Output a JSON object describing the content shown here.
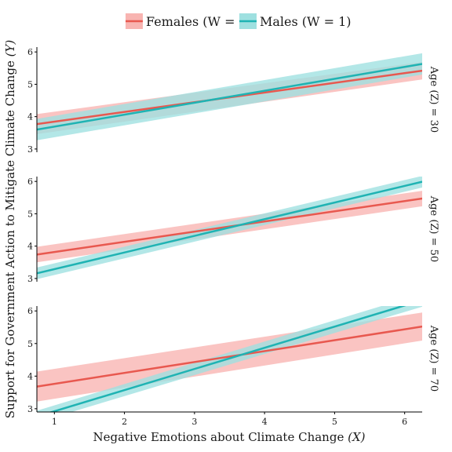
{
  "chart_data": {
    "type": "line",
    "title": "",
    "xlabel": "Negative Emotions about Climate Change",
    "xlabel_symbol": "(X)",
    "ylabel": "Support for Government Action to Mitigate Climate Change",
    "ylabel_symbol": "(Y)",
    "xlim": [
      0.75,
      6.25
    ],
    "ylim": [
      2.9,
      6.15
    ],
    "x_ticks": [
      "1",
      "2",
      "3",
      "4",
      "5",
      "6"
    ],
    "y_ticks": [
      "3",
      "4",
      "5",
      "6"
    ],
    "legend": {
      "position": "top",
      "entries": [
        {
          "name": "Females",
          "label": "Females (W = 0)",
          "line_color": "#E8584F",
          "band_color": "#F8B4B1"
        },
        {
          "name": "Males",
          "label": "Males (W = 1)",
          "line_color": "#1FB3B3",
          "band_color": "#9EE0E0"
        }
      ]
    },
    "panels": [
      {
        "label": "Age (Z) = 30",
        "series": [
          {
            "name": "Females",
            "x": [
              0.75,
              6.25
            ],
            "y": [
              3.77,
              5.42
            ],
            "lower": [
              3.46,
              5.15
            ],
            "upper": [
              4.08,
              5.69
            ]
          },
          {
            "name": "Males",
            "x": [
              0.75,
              6.25
            ],
            "y": [
              3.6,
              5.63
            ],
            "lower": [
              3.27,
              5.3
            ],
            "upper": [
              3.93,
              5.96
            ]
          }
        ]
      },
      {
        "label": "Age (Z) = 50",
        "series": [
          {
            "name": "Females",
            "x": [
              0.75,
              6.25
            ],
            "y": [
              3.74,
              5.47
            ],
            "lower": [
              3.5,
              5.23
            ],
            "upper": [
              3.98,
              5.71
            ]
          },
          {
            "name": "Males",
            "x": [
              0.75,
              6.25
            ],
            "y": [
              3.16,
              5.99
            ],
            "lower": [
              2.98,
              5.81
            ],
            "upper": [
              3.34,
              6.17
            ]
          }
        ]
      },
      {
        "label": "Age (Z) = 70",
        "series": [
          {
            "name": "Females",
            "x": [
              0.75,
              6.25
            ],
            "y": [
              3.68,
              5.52
            ],
            "lower": [
              3.22,
              5.09
            ],
            "upper": [
              4.14,
              5.95
            ]
          },
          {
            "name": "Males",
            "x": [
              0.75,
              6.25
            ],
            "y": [
              2.76,
              6.33
            ],
            "lower": [
              2.58,
              6.13
            ],
            "upper": [
              2.94,
              6.53
            ]
          }
        ]
      }
    ]
  }
}
